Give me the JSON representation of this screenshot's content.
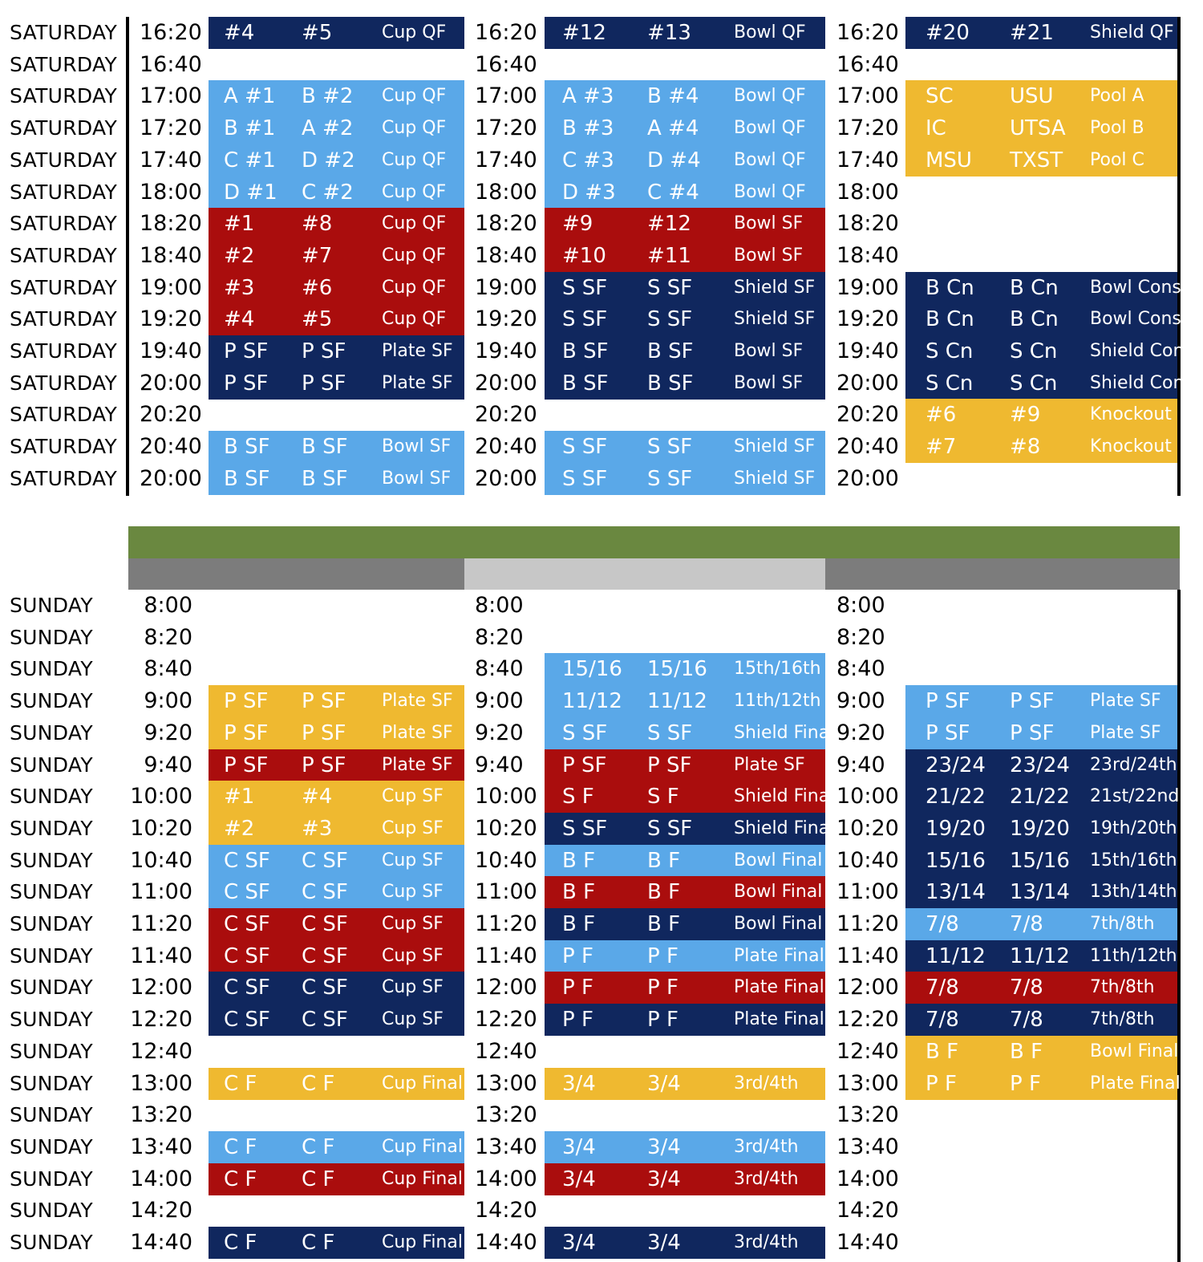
{
  "colors": {
    "navy": "#10275e",
    "light": "#5aa8e8",
    "red": "#aa0d0d",
    "gold": "#efb930",
    "green": "#6a8840",
    "gray_dark": "#7c7c7c",
    "gray_light": "#c7c7c7"
  },
  "saturday": [
    {
      "day": "SATURDAY",
      "times": [
        "16:20",
        "16:20",
        "16:20"
      ],
      "cells": [
        {
          "c": "navy",
          "v": [
            "#4",
            "#5",
            "Cup QF"
          ]
        },
        {
          "c": "navy",
          "v": [
            "#12",
            "#13",
            "Bowl QF"
          ]
        },
        {
          "c": "navy",
          "v": [
            "#20",
            "#21",
            "Shield QF"
          ]
        }
      ]
    },
    {
      "day": "SATURDAY",
      "times": [
        "16:40",
        "16:40",
        "16:40"
      ],
      "cells": [
        null,
        null,
        null
      ]
    },
    {
      "day": "SATURDAY",
      "times": [
        "17:00",
        "17:00",
        "17:00"
      ],
      "cells": [
        {
          "c": "light",
          "v": [
            "A #1",
            "B #2",
            "Cup QF"
          ]
        },
        {
          "c": "light",
          "v": [
            "A #3",
            "B #4",
            "Bowl QF"
          ]
        },
        {
          "c": "gold",
          "v": [
            "SC",
            "USU",
            "Pool A"
          ]
        }
      ]
    },
    {
      "day": "SATURDAY",
      "times": [
        "17:20",
        "17:20",
        "17:20"
      ],
      "cells": [
        {
          "c": "light",
          "v": [
            "B #1",
            "A #2",
            "Cup QF"
          ]
        },
        {
          "c": "light",
          "v": [
            "B #3",
            "A #4",
            "Bowl QF"
          ]
        },
        {
          "c": "gold",
          "v": [
            "IC",
            "UTSA",
            "Pool B"
          ]
        }
      ]
    },
    {
      "day": "SATURDAY",
      "times": [
        "17:40",
        "17:40",
        "17:40"
      ],
      "cells": [
        {
          "c": "light",
          "v": [
            "C #1",
            "D #2",
            "Cup QF"
          ]
        },
        {
          "c": "light",
          "v": [
            "C #3",
            "D #4",
            "Bowl QF"
          ]
        },
        {
          "c": "gold",
          "v": [
            "MSU",
            "TXST",
            "Pool C"
          ]
        }
      ]
    },
    {
      "day": "SATURDAY",
      "times": [
        "18:00",
        "18:00",
        "18:00"
      ],
      "cells": [
        {
          "c": "light",
          "v": [
            "D #1",
            "C #2",
            "Cup QF"
          ]
        },
        {
          "c": "light",
          "v": [
            "D #3",
            "C #4",
            "Bowl QF"
          ]
        },
        null
      ]
    },
    {
      "day": "SATURDAY",
      "times": [
        "18:20",
        "18:20",
        "18:20"
      ],
      "cells": [
        {
          "c": "red",
          "v": [
            "#1",
            "#8",
            "Cup QF"
          ]
        },
        {
          "c": "red",
          "v": [
            "#9",
            "#12",
            "Bowl SF"
          ]
        },
        null
      ]
    },
    {
      "day": "SATURDAY",
      "times": [
        "18:40",
        "18:40",
        "18:40"
      ],
      "cells": [
        {
          "c": "red",
          "v": [
            "#2",
            "#7",
            "Cup QF"
          ]
        },
        {
          "c": "red",
          "v": [
            "#10",
            "#11",
            "Bowl SF"
          ]
        },
        null
      ]
    },
    {
      "day": "SATURDAY",
      "times": [
        "19:00",
        "19:00",
        "19:00"
      ],
      "cells": [
        {
          "c": "red",
          "v": [
            "#3",
            "#6",
            "Cup QF"
          ]
        },
        {
          "c": "navy",
          "v": [
            "S SF",
            "S SF",
            "Shield SF"
          ]
        },
        {
          "c": "navy",
          "v": [
            "B Cn",
            "B Cn",
            "Bowl Cons."
          ]
        }
      ]
    },
    {
      "day": "SATURDAY",
      "times": [
        "19:20",
        "19:20",
        "19:20"
      ],
      "cells": [
        {
          "c": "red",
          "v": [
            "#4",
            "#5",
            "Cup QF"
          ]
        },
        {
          "c": "navy",
          "v": [
            "S SF",
            "S SF",
            "Shield SF"
          ]
        },
        {
          "c": "navy",
          "v": [
            "B Cn",
            "B Cn",
            "Bowl Cons."
          ]
        }
      ]
    },
    {
      "day": "SATURDAY",
      "times": [
        "19:40",
        "19:40",
        "19:40"
      ],
      "cells": [
        {
          "c": "navy",
          "v": [
            "P SF",
            "P SF",
            "Plate SF"
          ]
        },
        {
          "c": "navy",
          "v": [
            "B SF",
            "B SF",
            "Bowl SF"
          ]
        },
        {
          "c": "navy",
          "v": [
            "S Cn",
            "S Cn",
            "Shield Cons."
          ]
        }
      ]
    },
    {
      "day": "SATURDAY",
      "times": [
        "20:00",
        "20:00",
        "20:00"
      ],
      "cells": [
        {
          "c": "navy",
          "v": [
            "P SF",
            "P SF",
            "Plate SF"
          ]
        },
        {
          "c": "navy",
          "v": [
            "B SF",
            "B SF",
            "Bowl SF"
          ]
        },
        {
          "c": "navy",
          "v": [
            "S Cn",
            "S Cn",
            "Shield Cons."
          ]
        }
      ]
    },
    {
      "day": "SATURDAY",
      "times": [
        "20:20",
        "20:20",
        "20:20"
      ],
      "cells": [
        null,
        null,
        {
          "c": "gold",
          "v": [
            "#6",
            "#9",
            "Knockout"
          ]
        }
      ]
    },
    {
      "day": "SATURDAY",
      "times": [
        "20:40",
        "20:40",
        "20:40"
      ],
      "cells": [
        {
          "c": "light",
          "v": [
            "B SF",
            "B SF",
            "Bowl SF"
          ]
        },
        {
          "c": "light",
          "v": [
            "S SF",
            "S SF",
            "Shield SF"
          ]
        },
        {
          "c": "gold",
          "v": [
            "#7",
            "#8",
            "Knockout"
          ]
        }
      ]
    },
    {
      "day": "SATURDAY",
      "times": [
        "20:00",
        "20:00",
        "20:00"
      ],
      "cells": [
        {
          "c": "light",
          "v": [
            "B SF",
            "B SF",
            "Bowl SF"
          ]
        },
        {
          "c": "light",
          "v": [
            "S SF",
            "S SF",
            "Shield SF"
          ]
        },
        null
      ]
    }
  ],
  "sunday": [
    {
      "day": "SUNDAY",
      "times": [
        "8:00",
        "8:00",
        "8:00"
      ],
      "cells": [
        null,
        null,
        null
      ]
    },
    {
      "day": "SUNDAY",
      "times": [
        "8:20",
        "8:20",
        "8:20"
      ],
      "cells": [
        null,
        null,
        null
      ]
    },
    {
      "day": "SUNDAY",
      "times": [
        "8:40",
        "8:40",
        "8:40"
      ],
      "cells": [
        null,
        {
          "c": "light",
          "v": [
            "15/16",
            "15/16",
            "15th/16th"
          ]
        },
        null
      ]
    },
    {
      "day": "SUNDAY",
      "times": [
        "9:00",
        "9:00",
        "9:00"
      ],
      "cells": [
        {
          "c": "gold",
          "v": [
            "P SF",
            "P SF",
            "Plate SF"
          ]
        },
        {
          "c": "light",
          "v": [
            "11/12",
            "11/12",
            "11th/12th"
          ]
        },
        {
          "c": "light",
          "v": [
            "P SF",
            "P SF",
            "Plate SF"
          ]
        }
      ]
    },
    {
      "day": "SUNDAY",
      "times": [
        "9:20",
        "9:20",
        "9:20"
      ],
      "cells": [
        {
          "c": "gold",
          "v": [
            "P SF",
            "P SF",
            "Plate SF"
          ]
        },
        {
          "c": "light",
          "v": [
            "S SF",
            "S SF",
            "Shield Final"
          ]
        },
        {
          "c": "light",
          "v": [
            "P SF",
            "P SF",
            "Plate SF"
          ]
        }
      ]
    },
    {
      "day": "SUNDAY",
      "times": [
        "9:40",
        "9:40",
        "9:40"
      ],
      "cells": [
        {
          "c": "red",
          "v": [
            "P SF",
            "P SF",
            "Plate SF"
          ]
        },
        {
          "c": "red",
          "v": [
            "P SF",
            "P SF",
            "Plate SF"
          ]
        },
        {
          "c": "navy",
          "v": [
            "23/24",
            "23/24",
            "23rd/24th"
          ]
        }
      ]
    },
    {
      "day": "SUNDAY",
      "times": [
        "10:00",
        "10:00",
        "10:00"
      ],
      "cells": [
        {
          "c": "gold",
          "v": [
            "#1",
            "#4",
            "Cup SF"
          ]
        },
        {
          "c": "red",
          "v": [
            "S F",
            "S F",
            "Shield Final"
          ]
        },
        {
          "c": "navy",
          "v": [
            "21/22",
            "21/22",
            "21st/22nd"
          ]
        }
      ]
    },
    {
      "day": "SUNDAY",
      "times": [
        "10:20",
        "10:20",
        "10:20"
      ],
      "cells": [
        {
          "c": "gold",
          "v": [
            "#2",
            "#3",
            "Cup SF"
          ]
        },
        {
          "c": "navy",
          "v": [
            "S SF",
            "S SF",
            "Shield Final"
          ]
        },
        {
          "c": "navy",
          "v": [
            "19/20",
            "19/20",
            "19th/20th"
          ]
        }
      ]
    },
    {
      "day": "SUNDAY",
      "times": [
        "10:40",
        "10:40",
        "10:40"
      ],
      "cells": [
        {
          "c": "light",
          "v": [
            "C SF",
            "C SF",
            "Cup SF"
          ]
        },
        {
          "c": "light",
          "v": [
            "B F",
            "B F",
            "Bowl Final"
          ]
        },
        {
          "c": "navy",
          "v": [
            "15/16",
            "15/16",
            "15th/16th"
          ]
        }
      ]
    },
    {
      "day": "SUNDAY",
      "times": [
        "11:00",
        "11:00",
        "11:00"
      ],
      "cells": [
        {
          "c": "light",
          "v": [
            "C SF",
            "C SF",
            "Cup SF"
          ]
        },
        {
          "c": "red",
          "v": [
            "B F",
            "B F",
            "Bowl Final"
          ]
        },
        {
          "c": "navy",
          "v": [
            "13/14",
            "13/14",
            "13th/14th"
          ]
        }
      ]
    },
    {
      "day": "SUNDAY",
      "times": [
        "11:20",
        "11:20",
        "11:20"
      ],
      "cells": [
        {
          "c": "red",
          "v": [
            "C SF",
            "C SF",
            "Cup SF"
          ]
        },
        {
          "c": "navy",
          "v": [
            "B F",
            "B F",
            "Bowl Final"
          ]
        },
        {
          "c": "light",
          "v": [
            "7/8",
            "7/8",
            "7th/8th"
          ]
        }
      ]
    },
    {
      "day": "SUNDAY",
      "times": [
        "11:40",
        "11:40",
        "11:40"
      ],
      "cells": [
        {
          "c": "red",
          "v": [
            "C SF",
            "C SF",
            "Cup SF"
          ]
        },
        {
          "c": "light",
          "v": [
            "P F",
            "P F",
            "Plate Final"
          ]
        },
        {
          "c": "navy",
          "v": [
            "11/12",
            "11/12",
            "11th/12th"
          ]
        }
      ]
    },
    {
      "day": "SUNDAY",
      "times": [
        "12:00",
        "12:00",
        "12:00"
      ],
      "cells": [
        {
          "c": "navy",
          "v": [
            "C SF",
            "C SF",
            "Cup SF"
          ]
        },
        {
          "c": "red",
          "v": [
            "P F",
            "P F",
            "Plate Final"
          ]
        },
        {
          "c": "red",
          "v": [
            "7/8",
            "7/8",
            "7th/8th"
          ]
        }
      ]
    },
    {
      "day": "SUNDAY",
      "times": [
        "12:20",
        "12:20",
        "12:20"
      ],
      "cells": [
        {
          "c": "navy",
          "v": [
            "C SF",
            "C SF",
            "Cup SF"
          ]
        },
        {
          "c": "navy",
          "v": [
            "P F",
            "P F",
            "Plate Final"
          ]
        },
        {
          "c": "navy",
          "v": [
            "7/8",
            "7/8",
            "7th/8th"
          ]
        }
      ]
    },
    {
      "day": "SUNDAY",
      "times": [
        "12:40",
        "12:40",
        "12:40"
      ],
      "cells": [
        null,
        null,
        {
          "c": "gold",
          "v": [
            "B F",
            "B F",
            "Bowl Final"
          ]
        }
      ]
    },
    {
      "day": "SUNDAY",
      "times": [
        "13:00",
        "13:00",
        "13:00"
      ],
      "cells": [
        {
          "c": "gold",
          "v": [
            "C F",
            "C F",
            "Cup Final"
          ]
        },
        {
          "c": "gold",
          "v": [
            "3/4",
            "3/4",
            "3rd/4th"
          ]
        },
        {
          "c": "gold",
          "v": [
            "P F",
            "P F",
            "Plate Final"
          ]
        }
      ]
    },
    {
      "day": "SUNDAY",
      "times": [
        "13:20",
        "13:20",
        "13:20"
      ],
      "cells": [
        null,
        null,
        null
      ]
    },
    {
      "day": "SUNDAY",
      "times": [
        "13:40",
        "13:40",
        "13:40"
      ],
      "cells": [
        {
          "c": "light",
          "v": [
            "C F",
            "C F",
            "Cup Final"
          ]
        },
        {
          "c": "light",
          "v": [
            "3/4",
            "3/4",
            "3rd/4th"
          ]
        },
        null
      ]
    },
    {
      "day": "SUNDAY",
      "times": [
        "14:00",
        "14:00",
        "14:00"
      ],
      "cells": [
        {
          "c": "red",
          "v": [
            "C F",
            "C F",
            "Cup Final"
          ]
        },
        {
          "c": "red",
          "v": [
            "3/4",
            "3/4",
            "3rd/4th"
          ]
        },
        null
      ]
    },
    {
      "day": "SUNDAY",
      "times": [
        "14:20",
        "14:20",
        "14:20"
      ],
      "cells": [
        null,
        null,
        null
      ]
    },
    {
      "day": "SUNDAY",
      "times": [
        "14:40",
        "14:40",
        "14:40"
      ],
      "cells": [
        {
          "c": "navy",
          "v": [
            "C F",
            "C F",
            "Cup Final"
          ]
        },
        {
          "c": "navy",
          "v": [
            "3/4",
            "3/4",
            "3rd/4th"
          ]
        },
        null
      ]
    }
  ]
}
